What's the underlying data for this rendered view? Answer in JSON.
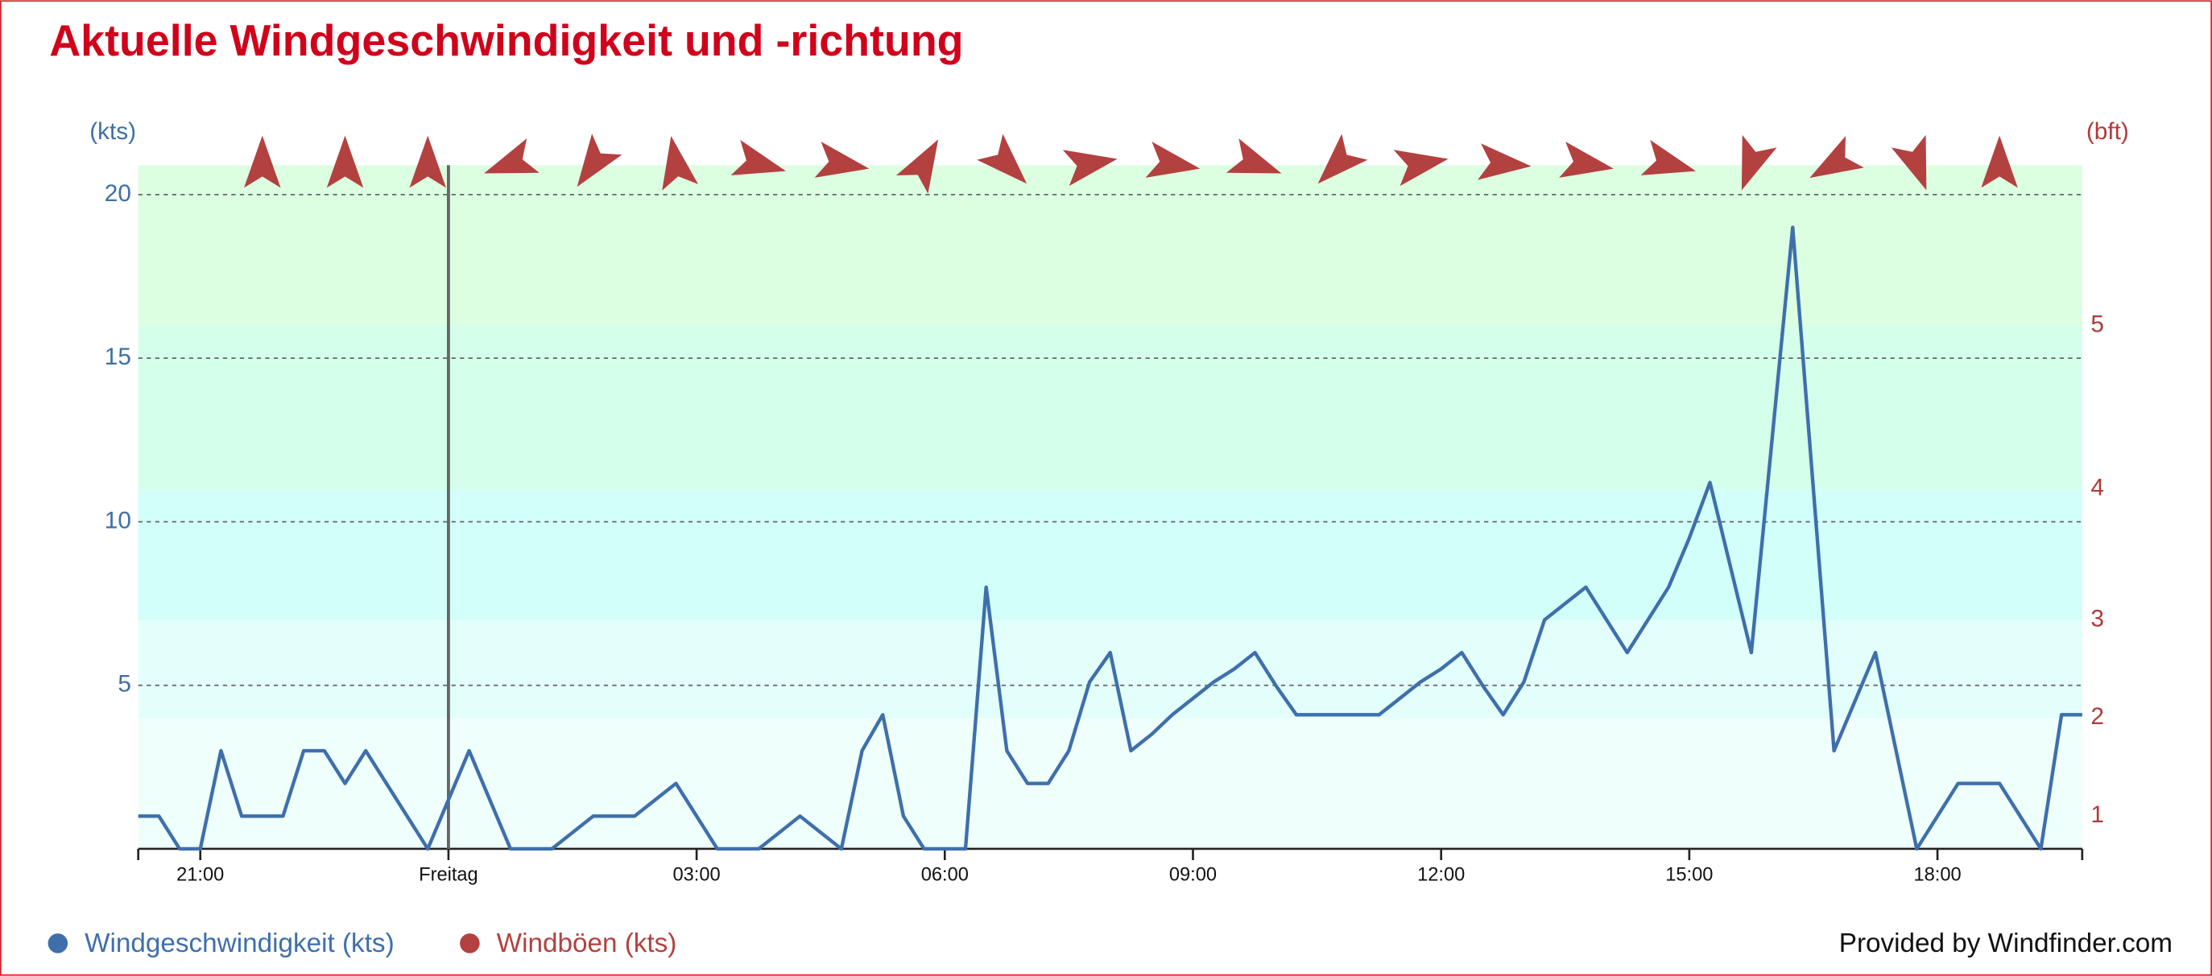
{
  "chart_data": {
    "type": "line",
    "title": "Aktuelle Windgeschwindigkeit und -richtung",
    "y_axis_label": "(kts)",
    "y2_axis_label": "(bft)",
    "footer": "Provided by Windfinder.com",
    "x": [
      -3.75,
      -3.5,
      -3.25,
      -3,
      -2.75,
      -2.5,
      -2.25,
      -2,
      -1.75,
      -1.5,
      -1.25,
      -1,
      -0.75,
      -0.5,
      -0.25,
      0,
      0.25,
      0.5,
      0.75,
      1,
      1.25,
      1.5,
      1.75,
      2,
      2.25,
      2.5,
      2.75,
      3,
      3.25,
      3.5,
      3.75,
      4,
      4.25,
      4.5,
      4.75,
      5,
      5.25,
      5.5,
      5.75,
      6,
      6.25,
      6.5,
      6.75,
      7,
      7.25,
      7.5,
      7.75,
      8,
      8.25,
      8.5,
      8.75,
      9,
      9.25,
      9.5,
      9.75,
      10,
      10.25,
      10.5,
      10.75,
      11,
      11.25,
      11.5,
      11.75,
      12,
      12.25,
      12.5,
      12.75,
      13,
      13.25,
      13.5,
      13.75,
      14,
      14.25,
      14.5,
      14.75,
      15,
      15.25,
      15.5,
      15.75,
      16,
      16.25,
      16.5,
      16.75,
      17,
      17.25,
      17.5,
      17.75,
      18,
      18.25,
      18.5,
      18.75,
      19,
      19.25,
      19.5,
      19.75
    ],
    "series": [
      {
        "name": "Windgeschwindigkeit (kts)",
        "color": "#3f6fab",
        "values": [
          1,
          1,
          0,
          0,
          3,
          1,
          1,
          1,
          3,
          3,
          2,
          3,
          2,
          1,
          0,
          1.5,
          3,
          1.5,
          0,
          0,
          0,
          0.5,
          1,
          1,
          1,
          1.5,
          2,
          1,
          0,
          0,
          0,
          0.5,
          1,
          0.5,
          0,
          3,
          4.1,
          1,
          0,
          0,
          0,
          8,
          3,
          2,
          2,
          3,
          5.1,
          6,
          3,
          3.5,
          4.1,
          4.6,
          5.1,
          5.5,
          6,
          5,
          4.1,
          4.1,
          4.1,
          4.1,
          4.1,
          4.6,
          5.1,
          5.5,
          6,
          5,
          4.1,
          5.1,
          7,
          7.5,
          8,
          7,
          6,
          7,
          8,
          9.5,
          11.2,
          8.6,
          6,
          12.5,
          19,
          11,
          3,
          4.5,
          6,
          3,
          0,
          1,
          2,
          2,
          2,
          1,
          0,
          4.1,
          4.1
        ]
      },
      {
        "name": "Windböen (kts)",
        "color": "#b34140",
        "values": [
          null,
          null,
          null,
          null,
          null,
          null,
          null,
          null,
          null,
          null,
          null,
          null,
          null,
          null,
          null,
          null,
          null,
          null,
          null,
          null,
          null,
          null,
          null,
          null,
          null,
          null,
          null,
          null,
          null,
          null,
          null,
          null,
          null,
          null,
          null,
          null,
          null,
          null,
          null,
          null,
          null,
          null,
          null,
          null,
          null,
          null,
          null,
          null,
          null,
          null,
          null,
          null,
          null,
          null,
          null,
          null,
          null,
          null,
          null,
          null,
          null,
          null,
          null,
          null,
          null,
          null,
          null,
          null,
          null,
          null,
          null,
          null,
          null,
          null,
          null,
          null,
          null,
          null,
          null,
          null,
          null,
          null,
          null,
          null,
          null,
          null,
          null,
          null,
          null,
          null,
          null,
          null,
          null,
          null,
          null
        ]
      }
    ],
    "xlim": [
      -3.75,
      19.75
    ],
    "xticks": [
      {
        "value": -3,
        "label": "21:00"
      },
      {
        "value": 0,
        "label": "Freitag"
      },
      {
        "value": 3,
        "label": "03:00"
      },
      {
        "value": 6,
        "label": "06:00"
      },
      {
        "value": 9,
        "label": "09:00"
      },
      {
        "value": 12,
        "label": "12:00"
      },
      {
        "value": 15,
        "label": "15:00"
      },
      {
        "value": 18,
        "label": "18:00"
      }
    ],
    "day_separator": 0,
    "ylim": [
      0,
      20.9
    ],
    "yticks": [
      5,
      10,
      15,
      20
    ],
    "grid": true,
    "beaufort_scale": [
      {
        "bft": 1,
        "kts": 1
      },
      {
        "bft": 2,
        "kts": 4
      },
      {
        "bft": 3,
        "kts": 7
      },
      {
        "bft": 4,
        "kts": 11
      },
      {
        "bft": 5,
        "kts": 16
      }
    ],
    "bands": [
      {
        "from": 0,
        "to": 4,
        "color": "#effffc"
      },
      {
        "from": 4,
        "to": 7,
        "color": "#e2fffb"
      },
      {
        "from": 7,
        "to": 11,
        "color": "#d2fffa"
      },
      {
        "from": 11,
        "to": 16,
        "color": "#d4ffea"
      },
      {
        "from": 16,
        "to": 20.9,
        "color": "#dcffe1"
      }
    ],
    "wind_direction": {
      "color": "#b34140",
      "x": [
        -2.25,
        -1.25,
        -0.25,
        0.75,
        1.75,
        2.75,
        3.75,
        4.75,
        5.75,
        6.75,
        7.75,
        8.75,
        9.75,
        10.75,
        11.75,
        12.75,
        13.75,
        14.75,
        15.75,
        16.75,
        17.75,
        18.75
      ],
      "degrees": [
        0,
        0,
        0,
        250,
        215,
        350,
        105,
        100,
        30,
        135,
        80,
        100,
        110,
        225,
        80,
        95,
        100,
        105,
        200,
        240,
        160,
        0
      ]
    },
    "legend_position": "bottom-left"
  }
}
